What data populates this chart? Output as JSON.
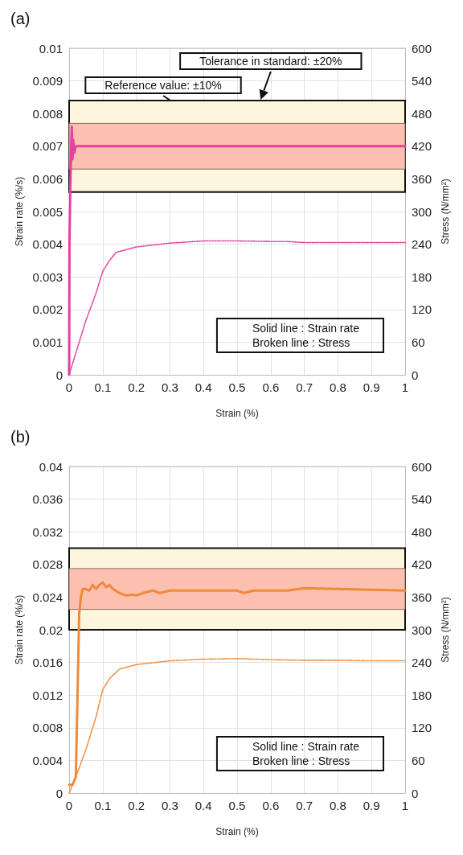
{
  "chart_data": [
    {
      "type": "line",
      "title": "(a)",
      "xlabel": "Strain (%)",
      "ylabel": "Strain rate (%/s)",
      "y2label": "Stress (N/mm²)",
      "xlim": [
        0,
        1
      ],
      "xticks": [
        0,
        0.1,
        0.2,
        0.3,
        0.4,
        0.5,
        0.6,
        0.7,
        0.8,
        0.9,
        1
      ],
      "ylim": [
        0,
        0.01
      ],
      "yticks": [
        0,
        0.001,
        0.002,
        0.003,
        0.004,
        0.005,
        0.006,
        0.007,
        0.008,
        0.009,
        0.01
      ],
      "y2lim": [
        0,
        600
      ],
      "y2ticks": [
        0,
        60,
        120,
        180,
        240,
        300,
        360,
        420,
        480,
        540,
        600
      ],
      "grid": true,
      "marker": "none",
      "bands": [
        {
          "axis": "y",
          "from": 0.0056,
          "to": 0.0084,
          "label": "Tolerance in standard: ±20%",
          "color": "#fdf5dc"
        },
        {
          "axis": "y",
          "from": 0.0063,
          "to": 0.0077,
          "label": "Reference value: ±10%",
          "color": "#fcc0b0"
        }
      ],
      "annotations": [
        "Solid line : Strain rate",
        "Broken line : Stress"
      ],
      "series": [
        {
          "color": "#e4409f",
          "line_style": "solid",
          "x": [
            0,
            0.001,
            0.003,
            0.005,
            0.008,
            0.01,
            0.012,
            0.015,
            0.02,
            0.03,
            1
          ],
          "values": [
            0,
            0.004,
            0.0055,
            0.0065,
            0.0076,
            0.0066,
            0.0072,
            0.0068,
            0.007,
            0.007,
            0.007
          ]
        },
        {
          "color": "#e4409f",
          "line_style": "dotted",
          "axis": "y2",
          "x": [
            0,
            0.02,
            0.05,
            0.08,
            0.1,
            0.12,
            0.14,
            0.2,
            0.3,
            0.4,
            0.5,
            0.6,
            0.65,
            0.7,
            0.8,
            1
          ],
          "values": [
            0,
            40,
            100,
            150,
            190,
            210,
            225,
            235,
            242,
            246,
            246,
            245,
            245,
            243,
            243,
            243
          ]
        }
      ]
    },
    {
      "type": "line",
      "title": "(b)",
      "xlabel": "Strain (%)",
      "ylabel": "Strain rate (%/s)",
      "y2label": "Stress (N/mm²)",
      "xlim": [
        0,
        1
      ],
      "xticks": [
        0,
        0.1,
        0.2,
        0.3,
        0.4,
        0.5,
        0.6,
        0.7,
        0.8,
        0.9,
        1
      ],
      "ylim": [
        0,
        0.04
      ],
      "yticks": [
        0,
        0.004,
        0.008,
        0.012,
        0.016,
        0.02,
        0.024,
        0.028,
        0.032,
        0.036,
        0.04
      ],
      "y2lim": [
        0,
        600
      ],
      "y2ticks": [
        0,
        60,
        120,
        180,
        240,
        300,
        360,
        420,
        480,
        540,
        600
      ],
      "grid": true,
      "marker": "none",
      "bands": [
        {
          "axis": "y",
          "from": 0.02,
          "to": 0.03,
          "color": "#fdf5dc"
        },
        {
          "axis": "y",
          "from": 0.0225,
          "to": 0.0275,
          "color": "#fcc0b0"
        }
      ],
      "annotations": [
        "Solid line : Strain rate",
        "Broken line : Stress"
      ],
      "series": [
        {
          "color": "#ee8a3a",
          "line_style": "solid",
          "x": [
            0,
            0.01,
            0.02,
            0.025,
            0.03,
            0.035,
            0.04,
            0.05,
            0.06,
            0.07,
            0.08,
            0.09,
            0.1,
            0.11,
            0.12,
            0.13,
            0.15,
            0.17,
            0.19,
            0.2,
            0.22,
            0.25,
            0.27,
            0.3,
            0.5,
            0.52,
            0.55,
            0.6,
            0.65,
            0.7,
            1
          ],
          "values": [
            0.001,
            0.001,
            0.002,
            0.012,
            0.022,
            0.024,
            0.025,
            0.025,
            0.0248,
            0.0255,
            0.025,
            0.0255,
            0.0258,
            0.0252,
            0.0255,
            0.025,
            0.0245,
            0.0242,
            0.0243,
            0.0242,
            0.0245,
            0.0248,
            0.0245,
            0.0248,
            0.0248,
            0.0245,
            0.0248,
            0.0248,
            0.0248,
            0.0251,
            0.0248
          ]
        },
        {
          "color": "#ee8a3a",
          "line_style": "dotted",
          "axis": "y2",
          "x": [
            0,
            0.02,
            0.05,
            0.08,
            0.1,
            0.12,
            0.15,
            0.2,
            0.3,
            0.4,
            0.5,
            0.6,
            0.7,
            0.8,
            0.9,
            1
          ],
          "values": [
            0,
            30,
            80,
            140,
            190,
            210,
            228,
            236,
            243,
            246,
            247,
            245,
            244,
            244,
            243,
            243
          ]
        }
      ]
    }
  ]
}
